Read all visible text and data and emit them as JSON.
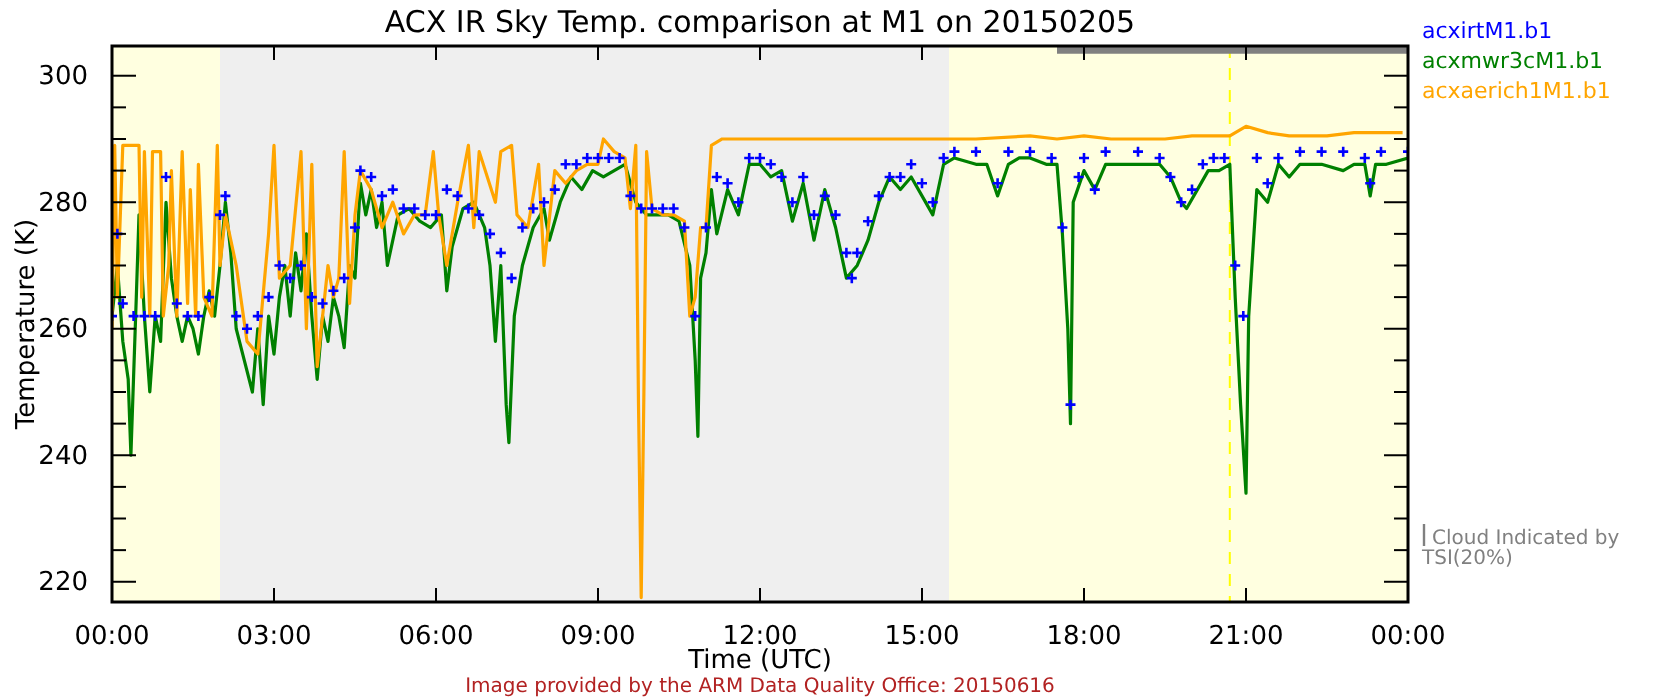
{
  "chart_data": {
    "type": "line",
    "title": "ACX IR Sky Temp. comparison at M1 on 20150205",
    "xlabel": "Time (UTC)",
    "ylabel": "Temperature (K)",
    "annotations": [
      "Image provided by the ARM Data Quality Office: 20150616"
    ],
    "xlim": [
      0,
      24
    ],
    "ylim": [
      216.8,
      304.7
    ],
    "xticks": [
      {
        "value": 0,
        "label": "00:00"
      },
      {
        "value": 3,
        "label": "03:00"
      },
      {
        "value": 6,
        "label": "06:00"
      },
      {
        "value": 9,
        "label": "09:00"
      },
      {
        "value": 12,
        "label": "12:00"
      },
      {
        "value": 15,
        "label": "15:00"
      },
      {
        "value": 18,
        "label": "18:00"
      },
      {
        "value": 21,
        "label": "21:00"
      },
      {
        "value": 24,
        "label": "00:00"
      }
    ],
    "yticks": [
      220,
      {
        "value": 225,
        "label": null
      },
      {
        "value": 230,
        "label": null
      },
      {
        "value": 235,
        "label": null
      },
      240,
      {
        "value": 245,
        "label": null
      },
      {
        "value": 250,
        "label": null
      },
      {
        "value": 255,
        "label": null
      },
      260,
      {
        "value": 265,
        "label": null
      },
      {
        "value": 270,
        "label": null
      },
      {
        "value": 275,
        "label": null
      },
      280,
      {
        "value": 285,
        "label": null
      },
      {
        "value": 290,
        "label": null
      },
      {
        "value": 295,
        "label": null
      },
      300
    ],
    "grid": false,
    "legend": "right",
    "bands": [
      {
        "axis": "x",
        "from": 0,
        "to": 2,
        "color": "#ffffe0"
      },
      {
        "axis": "x",
        "from": 2,
        "to": 15.5,
        "color": "#efefef"
      },
      {
        "axis": "x",
        "from": 15.5,
        "to": 24,
        "color": "#ffffe0"
      }
    ],
    "ref_lines": [
      {
        "axis": "x",
        "value": 20.7,
        "color": "#ffff00",
        "line_style": "dashed"
      }
    ],
    "series": [
      {
        "name": "Cloud Indicated by TSI(20%)",
        "type": "step",
        "color": "#808080",
        "x": [
          17.5,
          24
        ],
        "values": [
          304.1,
          304.1
        ]
      },
      {
        "name": "acxirtM1.b1",
        "type": "scatter",
        "marker": "cross",
        "color": "#0000ff",
        "x": [
          0,
          0.1,
          0.2,
          0.4,
          0.6,
          0.8,
          1,
          1.2,
          1.4,
          1.6,
          1.8,
          2,
          2.1,
          2.3,
          2.5,
          2.7,
          2.9,
          3.1,
          3.3,
          3.5,
          3.7,
          3.9,
          4.1,
          4.3,
          4.5,
          4.6,
          4.8,
          5,
          5.2,
          5.4,
          5.6,
          5.8,
          6,
          6.2,
          6.4,
          6.6,
          6.8,
          7,
          7.2,
          7.4,
          7.6,
          7.8,
          8,
          8.2,
          8.4,
          8.6,
          8.8,
          9,
          9.2,
          9.4,
          9.6,
          9.8,
          10,
          10.2,
          10.4,
          10.6,
          10.8,
          11,
          11.2,
          11.4,
          11.6,
          11.8,
          12,
          12.2,
          12.4,
          12.6,
          12.8,
          13,
          13.2,
          13.4,
          13.6,
          13.7,
          13.8,
          14,
          14.2,
          14.4,
          14.6,
          14.8,
          15,
          15.2,
          15.4,
          15.6,
          16,
          16.4,
          16.6,
          17,
          17.4,
          17.6,
          17.75,
          17.9,
          18,
          18.2,
          18.4,
          19,
          19.4,
          19.6,
          19.8,
          20,
          20.2,
          20.4,
          20.6,
          20.8,
          20.95,
          21.2,
          21.4,
          21.6,
          22,
          22.4,
          22.8,
          23.2,
          23.3,
          23.5,
          24
        ],
        "values": [
          262,
          275,
          264,
          262,
          262,
          262,
          284,
          264,
          262,
          262,
          265,
          278,
          281,
          262,
          260,
          262,
          265,
          270,
          268,
          270,
          265,
          264,
          266,
          268,
          276,
          285,
          284,
          281,
          282,
          279,
          279,
          278,
          278,
          282,
          281,
          279,
          278,
          275,
          272,
          268,
          276,
          279,
          280,
          282,
          286,
          286,
          287,
          287,
          287,
          287,
          281,
          279,
          279,
          279,
          279,
          276,
          262,
          276,
          284,
          283,
          280,
          287,
          287,
          286,
          284,
          280,
          284,
          278,
          281,
          278,
          272,
          268,
          272,
          277,
          281,
          284,
          284,
          286,
          283,
          280,
          287,
          288,
          288,
          283,
          288,
          288,
          287,
          276,
          248,
          284,
          287,
          282,
          288,
          288,
          287,
          284,
          280,
          282,
          286,
          287,
          287,
          270,
          262,
          287,
          283,
          287,
          288,
          288,
          288,
          287,
          283,
          288,
          288
        ]
      },
      {
        "name": "acxmwr3cM1.b1",
        "color": "#008000",
        "x": [
          0,
          0.1,
          0.2,
          0.3,
          0.35,
          0.45,
          0.5,
          0.6,
          0.7,
          0.8,
          0.9,
          1,
          1.1,
          1.2,
          1.3,
          1.4,
          1.5,
          1.6,
          1.7,
          1.8,
          1.9,
          2,
          2.1,
          2.2,
          2.3,
          2.45,
          2.6,
          2.7,
          2.8,
          2.9,
          3,
          3.1,
          3.2,
          3.3,
          3.4,
          3.5,
          3.6,
          3.7,
          3.8,
          3.9,
          4,
          4.1,
          4.2,
          4.3,
          4.4,
          4.5,
          4.6,
          4.7,
          4.8,
          4.9,
          5,
          5.1,
          5.3,
          5.5,
          5.7,
          5.9,
          6.1,
          6.2,
          6.3,
          6.5,
          6.7,
          6.9,
          7,
          7.1,
          7.2,
          7.3,
          7.35,
          7.45,
          7.6,
          7.8,
          8,
          8.1,
          8.3,
          8.5,
          8.7,
          8.9,
          9.1,
          9.3,
          9.5,
          9.7,
          9.9,
          10.1,
          10.3,
          10.5,
          10.7,
          10.8,
          10.85,
          10.9,
          11,
          11.1,
          11.2,
          11.4,
          11.6,
          11.8,
          12,
          12.2,
          12.4,
          12.6,
          12.8,
          13,
          13.2,
          13.4,
          13.6,
          13.8,
          14,
          14.2,
          14.4,
          14.6,
          14.8,
          15,
          15.2,
          15.4,
          15.6,
          16,
          16.2,
          16.4,
          16.6,
          16.8,
          17,
          17.3,
          17.5,
          17.6,
          17.7,
          17.75,
          17.8,
          18,
          18.2,
          18.4,
          18.6,
          19,
          19.4,
          19.6,
          19.8,
          19.9,
          20.1,
          20.3,
          20.5,
          20.7,
          20.8,
          20.9,
          21,
          21.05,
          21.2,
          21.4,
          21.6,
          21.8,
          22,
          22.4,
          22.8,
          23,
          23.2,
          23.3,
          23.4,
          23.6,
          24
        ],
        "values": [
          262,
          270,
          258,
          252,
          240,
          265,
          278,
          262,
          250,
          262,
          258,
          280,
          268,
          262,
          258,
          262,
          260,
          256,
          262,
          266,
          262,
          270,
          280,
          272,
          260,
          255,
          250,
          260,
          248,
          262,
          256,
          265,
          270,
          262,
          272,
          266,
          275,
          262,
          252,
          262,
          258,
          265,
          262,
          257,
          270,
          268,
          283,
          278,
          282,
          276,
          280,
          270,
          278,
          279,
          277,
          276,
          278,
          266,
          273,
          279,
          280,
          276,
          270,
          258,
          270,
          248,
          242,
          262,
          270,
          276,
          279,
          274,
          280,
          284,
          282,
          285,
          284,
          285,
          286,
          280,
          278,
          278,
          278,
          277,
          270,
          255,
          243,
          268,
          272,
          282,
          275,
          282,
          278,
          286,
          286,
          284,
          285,
          277,
          283,
          274,
          282,
          276,
          268,
          270,
          274,
          280,
          284,
          282,
          284,
          281,
          278,
          286,
          287,
          286,
          286,
          281,
          286,
          287,
          287,
          286,
          286,
          275,
          260,
          245,
          280,
          285,
          282,
          286,
          286,
          286,
          286,
          284,
          280,
          279,
          282,
          285,
          285,
          286,
          265,
          248,
          234,
          262,
          282,
          280,
          286,
          284,
          286,
          286,
          285,
          286,
          286,
          281,
          286,
          286,
          287
        ]
      },
      {
        "name": "acxaerich1M1.b1",
        "color": "#ffa500",
        "x": [
          0,
          0.05,
          0.1,
          0.2,
          0.5,
          0.55,
          0.6,
          0.7,
          0.75,
          0.9,
          0.95,
          1.05,
          1.1,
          1.2,
          1.3,
          1.4,
          1.45,
          1.55,
          1.6,
          1.7,
          1.85,
          1.95,
          2,
          2.1,
          2.3,
          2.5,
          2.7,
          2.9,
          3,
          3.1,
          3.3,
          3.5,
          3.6,
          3.7,
          3.8,
          3.9,
          4,
          4.1,
          4.2,
          4.3,
          4.4,
          4.5,
          4.6,
          4.8,
          5,
          5.2,
          5.4,
          5.6,
          5.8,
          5.95,
          6.05,
          6.2,
          6.4,
          6.6,
          6.7,
          6.8,
          7.1,
          7.2,
          7.4,
          7.5,
          7.7,
          7.9,
          8,
          8.2,
          8.4,
          8.6,
          8.8,
          9,
          9.1,
          9.3,
          9.5,
          9.6,
          9.7,
          9.75,
          9.8,
          9.85,
          9.9,
          10,
          10.2,
          10.4,
          10.6,
          10.7,
          10.8,
          10.9,
          11,
          11.1,
          11.3,
          12,
          13,
          15,
          16,
          17,
          17.5,
          18,
          18.5,
          19,
          19.5,
          20,
          20.7,
          21,
          21.4,
          21.8,
          22.5,
          23,
          23.9
        ],
        "values": [
          260,
          289,
          265,
          289,
          289,
          265,
          288,
          262,
          288,
          288,
          262,
          270,
          285,
          262,
          288,
          264,
          282,
          262,
          286,
          265,
          262,
          289,
          270,
          278,
          270,
          258,
          256,
          275,
          289,
          268,
          270,
          288,
          260,
          286,
          254,
          262,
          270,
          265,
          268,
          288,
          264,
          278,
          285,
          282,
          276,
          280,
          275,
          278,
          278,
          288,
          278,
          270,
          280,
          289,
          276,
          288,
          280,
          288,
          289,
          278,
          276,
          286,
          270,
          285,
          283,
          285,
          286,
          286,
          290,
          288,
          287,
          279,
          289,
          248,
          217.5,
          250,
          288,
          279,
          278,
          278,
          277,
          262,
          265,
          276,
          276,
          289,
          290,
          290,
          290,
          290,
          290,
          290.5,
          290,
          290.5,
          290,
          290,
          290,
          290.5,
          290.5,
          292,
          291,
          290.5,
          290.5,
          291,
          291
        ]
      }
    ]
  }
}
